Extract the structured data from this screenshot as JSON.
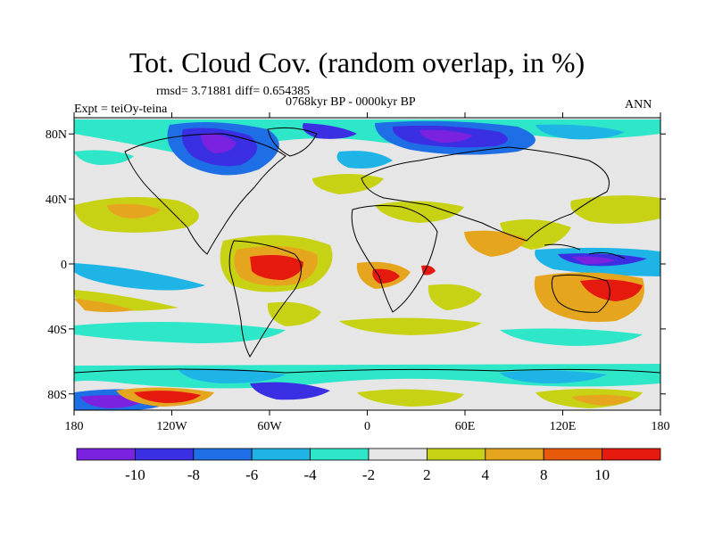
{
  "title": "Tot. Cloud Cov. (random overlap, in %)",
  "stats": "rmsd= 3.71881 diff= 0.654385",
  "period": "0768kyr BP - 0000kyr BP",
  "experiment": "Expt = teiOy-teina",
  "season": "ANN",
  "map": {
    "lon_range": [
      -180,
      180
    ],
    "lat_range": [
      -90,
      90
    ],
    "x_ticks": [
      {
        "value": -180,
        "label": "180"
      },
      {
        "value": -120,
        "label": "120W"
      },
      {
        "value": -60,
        "label": "60W"
      },
      {
        "value": 0,
        "label": "0"
      },
      {
        "value": 60,
        "label": "60E"
      },
      {
        "value": 120,
        "label": "120E"
      },
      {
        "value": 180,
        "label": "180"
      }
    ],
    "y_ticks": [
      {
        "value": 80,
        "label": "80N"
      },
      {
        "value": 40,
        "label": "40N"
      },
      {
        "value": 0,
        "label": "0"
      },
      {
        "value": -40,
        "label": "40S"
      },
      {
        "value": -80,
        "label": "80S"
      }
    ]
  },
  "colorbar": {
    "labels": [
      "-10",
      "-8",
      "-6",
      "-4",
      "-2",
      "2",
      "4",
      "8",
      "10"
    ],
    "colors": [
      "#7a22e0",
      "#3a2fe2",
      "#1e6ee6",
      "#1fb4e6",
      "#2ee6c8",
      "#e6e6e6",
      "#c8d214",
      "#e6a51e",
      "#e65a0a",
      "#e6190f"
    ]
  },
  "colors": {
    "neutral": "#e6e6e6",
    "coast": "#000000"
  }
}
